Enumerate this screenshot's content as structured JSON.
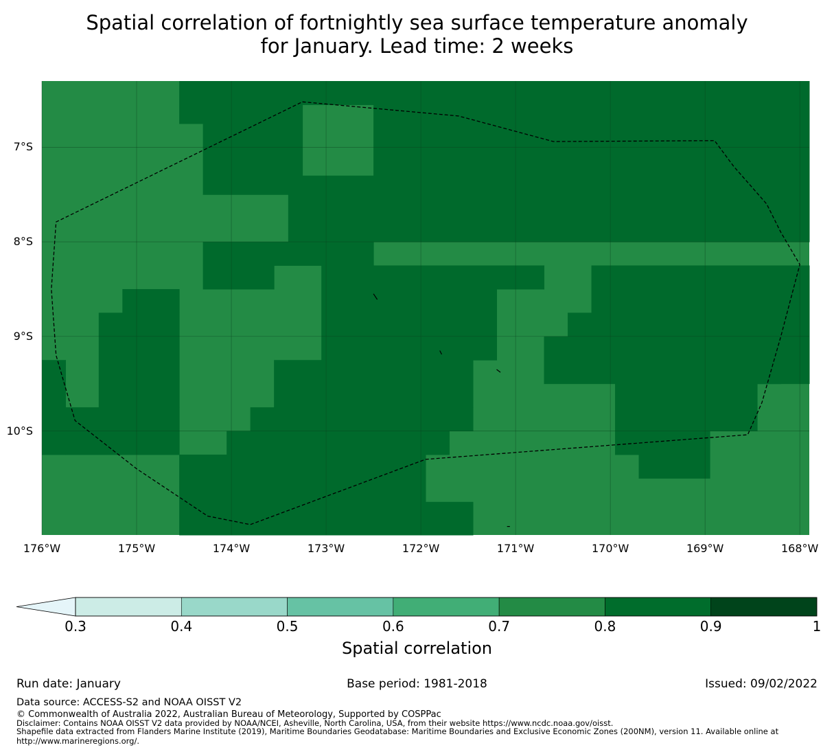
{
  "title": {
    "line1": "Spatial correlation of fortnightly sea surface temperature anomaly",
    "line2": "for January. Lead time: 2 weeks"
  },
  "map": {
    "lon_range": [
      -176,
      -167.9
    ],
    "lat_range": [
      -11.1,
      -6.3
    ],
    "lat_labels": [
      {
        "value": -7,
        "label": "7°S"
      },
      {
        "value": -8,
        "label": "8°S"
      },
      {
        "value": -9,
        "label": "9°S"
      },
      {
        "value": -10,
        "label": "10°S"
      }
    ],
    "lon_labels": [
      {
        "value": -176,
        "label": "176°W"
      },
      {
        "value": -175,
        "label": "175°W"
      },
      {
        "value": -174,
        "label": "174°W"
      },
      {
        "value": -173,
        "label": "173°W"
      },
      {
        "value": -172,
        "label": "172°W"
      },
      {
        "value": -171,
        "label": "171°W"
      },
      {
        "value": -170,
        "label": "170°W"
      },
      {
        "value": -169,
        "label": "169°W"
      },
      {
        "value": -168,
        "label": "168°W"
      }
    ],
    "high_class_color": "#006a2c",
    "base_class_color": "#238b45",
    "grid_line_color": "#0b3f1d",
    "high_correlation_cells": [
      [
        -174.55,
        -173.25,
        -6.3,
        -6.75
      ],
      [
        -174.3,
        -173.25,
        -6.75,
        -7.5
      ],
      [
        -173.25,
        -172.5,
        -6.3,
        -6.55
      ],
      [
        -172.5,
        -167.9,
        -6.3,
        -7.3
      ],
      [
        -173.4,
        -172.5,
        -7.3,
        -8.0
      ],
      [
        -172.5,
        -167.9,
        -7.3,
        -8.0
      ],
      [
        -174.3,
        -172.5,
        -8.0,
        -8.25
      ],
      [
        -174.3,
        -173.55,
        -8.25,
        -8.5
      ],
      [
        -175.15,
        -174.55,
        -8.5,
        -8.75
      ],
      [
        -173.05,
        -171.2,
        -8.25,
        -9.25
      ],
      [
        -171.2,
        -170.95,
        -8.25,
        -8.5
      ],
      [
        -170.95,
        -170.7,
        -8.25,
        -8.5
      ],
      [
        -170.2,
        -167.9,
        -8.25,
        -9.0
      ],
      [
        -170.45,
        -170.2,
        -8.75,
        -9.0
      ],
      [
        -175.4,
        -174.55,
        -8.75,
        -9.75
      ],
      [
        -176.0,
        -175.75,
        -9.25,
        -10.25
      ],
      [
        -175.75,
        -174.55,
        -9.75,
        -10.25
      ],
      [
        -173.55,
        -171.45,
        -9.25,
        -9.75
      ],
      [
        -173.8,
        -171.45,
        -9.75,
        -10.0
      ],
      [
        -174.05,
        -171.7,
        -10.0,
        -10.25
      ],
      [
        -170.7,
        -167.9,
        -9.0,
        -9.5
      ],
      [
        -168.45,
        -168.2,
        -9.25,
        -9.5
      ],
      [
        -169.95,
        -168.95,
        -9.5,
        -10.25
      ],
      [
        -168.95,
        -168.45,
        -9.5,
        -10.0
      ],
      [
        -174.55,
        -171.95,
        -10.25,
        -11.1
      ],
      [
        -169.7,
        -168.95,
        -10.25,
        -10.5
      ],
      [
        -171.95,
        -171.45,
        -10.75,
        -11.1
      ]
    ],
    "eez_boundary": [
      [
        -173.25,
        -6.52
      ],
      [
        -171.6,
        -6.67
      ],
      [
        -170.6,
        -6.94
      ],
      [
        -168.9,
        -6.93
      ],
      [
        -168.7,
        -7.2
      ],
      [
        -168.35,
        -7.6
      ],
      [
        -168.2,
        -7.9
      ],
      [
        -168.0,
        -8.24
      ],
      [
        -168.2,
        -9.0
      ],
      [
        -168.4,
        -9.7
      ],
      [
        -168.55,
        -10.04
      ],
      [
        -171.95,
        -10.3
      ],
      [
        -173.8,
        -10.99
      ],
      [
        -174.25,
        -10.9
      ],
      [
        -175.0,
        -10.4
      ],
      [
        -175.65,
        -9.89
      ],
      [
        -175.85,
        -9.2
      ],
      [
        -175.9,
        -8.5
      ],
      [
        -175.85,
        -7.79
      ],
      [
        -173.25,
        -6.52
      ]
    ],
    "islands": [
      [
        [
          -172.5,
          -8.55
        ],
        [
          -172.46,
          -8.61
        ]
      ],
      [
        [
          -171.8,
          -9.15
        ],
        [
          -171.78,
          -9.19
        ]
      ],
      [
        [
          -171.2,
          -9.35
        ],
        [
          -171.16,
          -9.38
        ]
      ],
      [
        [
          -171.09,
          -11.01
        ],
        [
          -171.06,
          -11.01
        ]
      ]
    ]
  },
  "colorbar": {
    "label": "Spatial correlation",
    "under_color": "#e5f5f9",
    "bins": [
      {
        "from": 0.3,
        "to": 0.4,
        "color": "#ccece6"
      },
      {
        "from": 0.4,
        "to": 0.5,
        "color": "#99d8c9"
      },
      {
        "from": 0.5,
        "to": 0.6,
        "color": "#66c2a4"
      },
      {
        "from": 0.6,
        "to": 0.7,
        "color": "#41ae76"
      },
      {
        "from": 0.7,
        "to": 0.8,
        "color": "#238b45"
      },
      {
        "from": 0.8,
        "to": 0.9,
        "color": "#006d2c"
      },
      {
        "from": 0.9,
        "to": 1.0,
        "color": "#00441b"
      }
    ],
    "ticks": [
      "0.3",
      "0.4",
      "0.5",
      "0.6",
      "0.7",
      "0.8",
      "0.9",
      "1"
    ]
  },
  "footer": {
    "run_date": "Run date: January",
    "base_period": "Base period: 1981-2018",
    "issued": "Issued: 09/02/2022",
    "data_source": "Data source: ACCESS-S2 and NOAA OISST V2",
    "copyright": "© Commonwealth of Australia 2022, Australian Bureau of Meteorology, Supported by COSPPac",
    "disclaimer": "Disclaimer: Contains NOAA OISST V2 data provided by NOAA/NCEI, Asheville, North Carolina, USA, from their website https://www.ncdc.noaa.gov/oisst.",
    "shapefile": "Shapefile data extracted from Flanders Marine Institute (2019), Maritime Boundaries Geodatabase: Maritime Boundaries and Exclusive Economic Zones (200NM), version 11. Available online at http://www.marineregions.org/."
  }
}
